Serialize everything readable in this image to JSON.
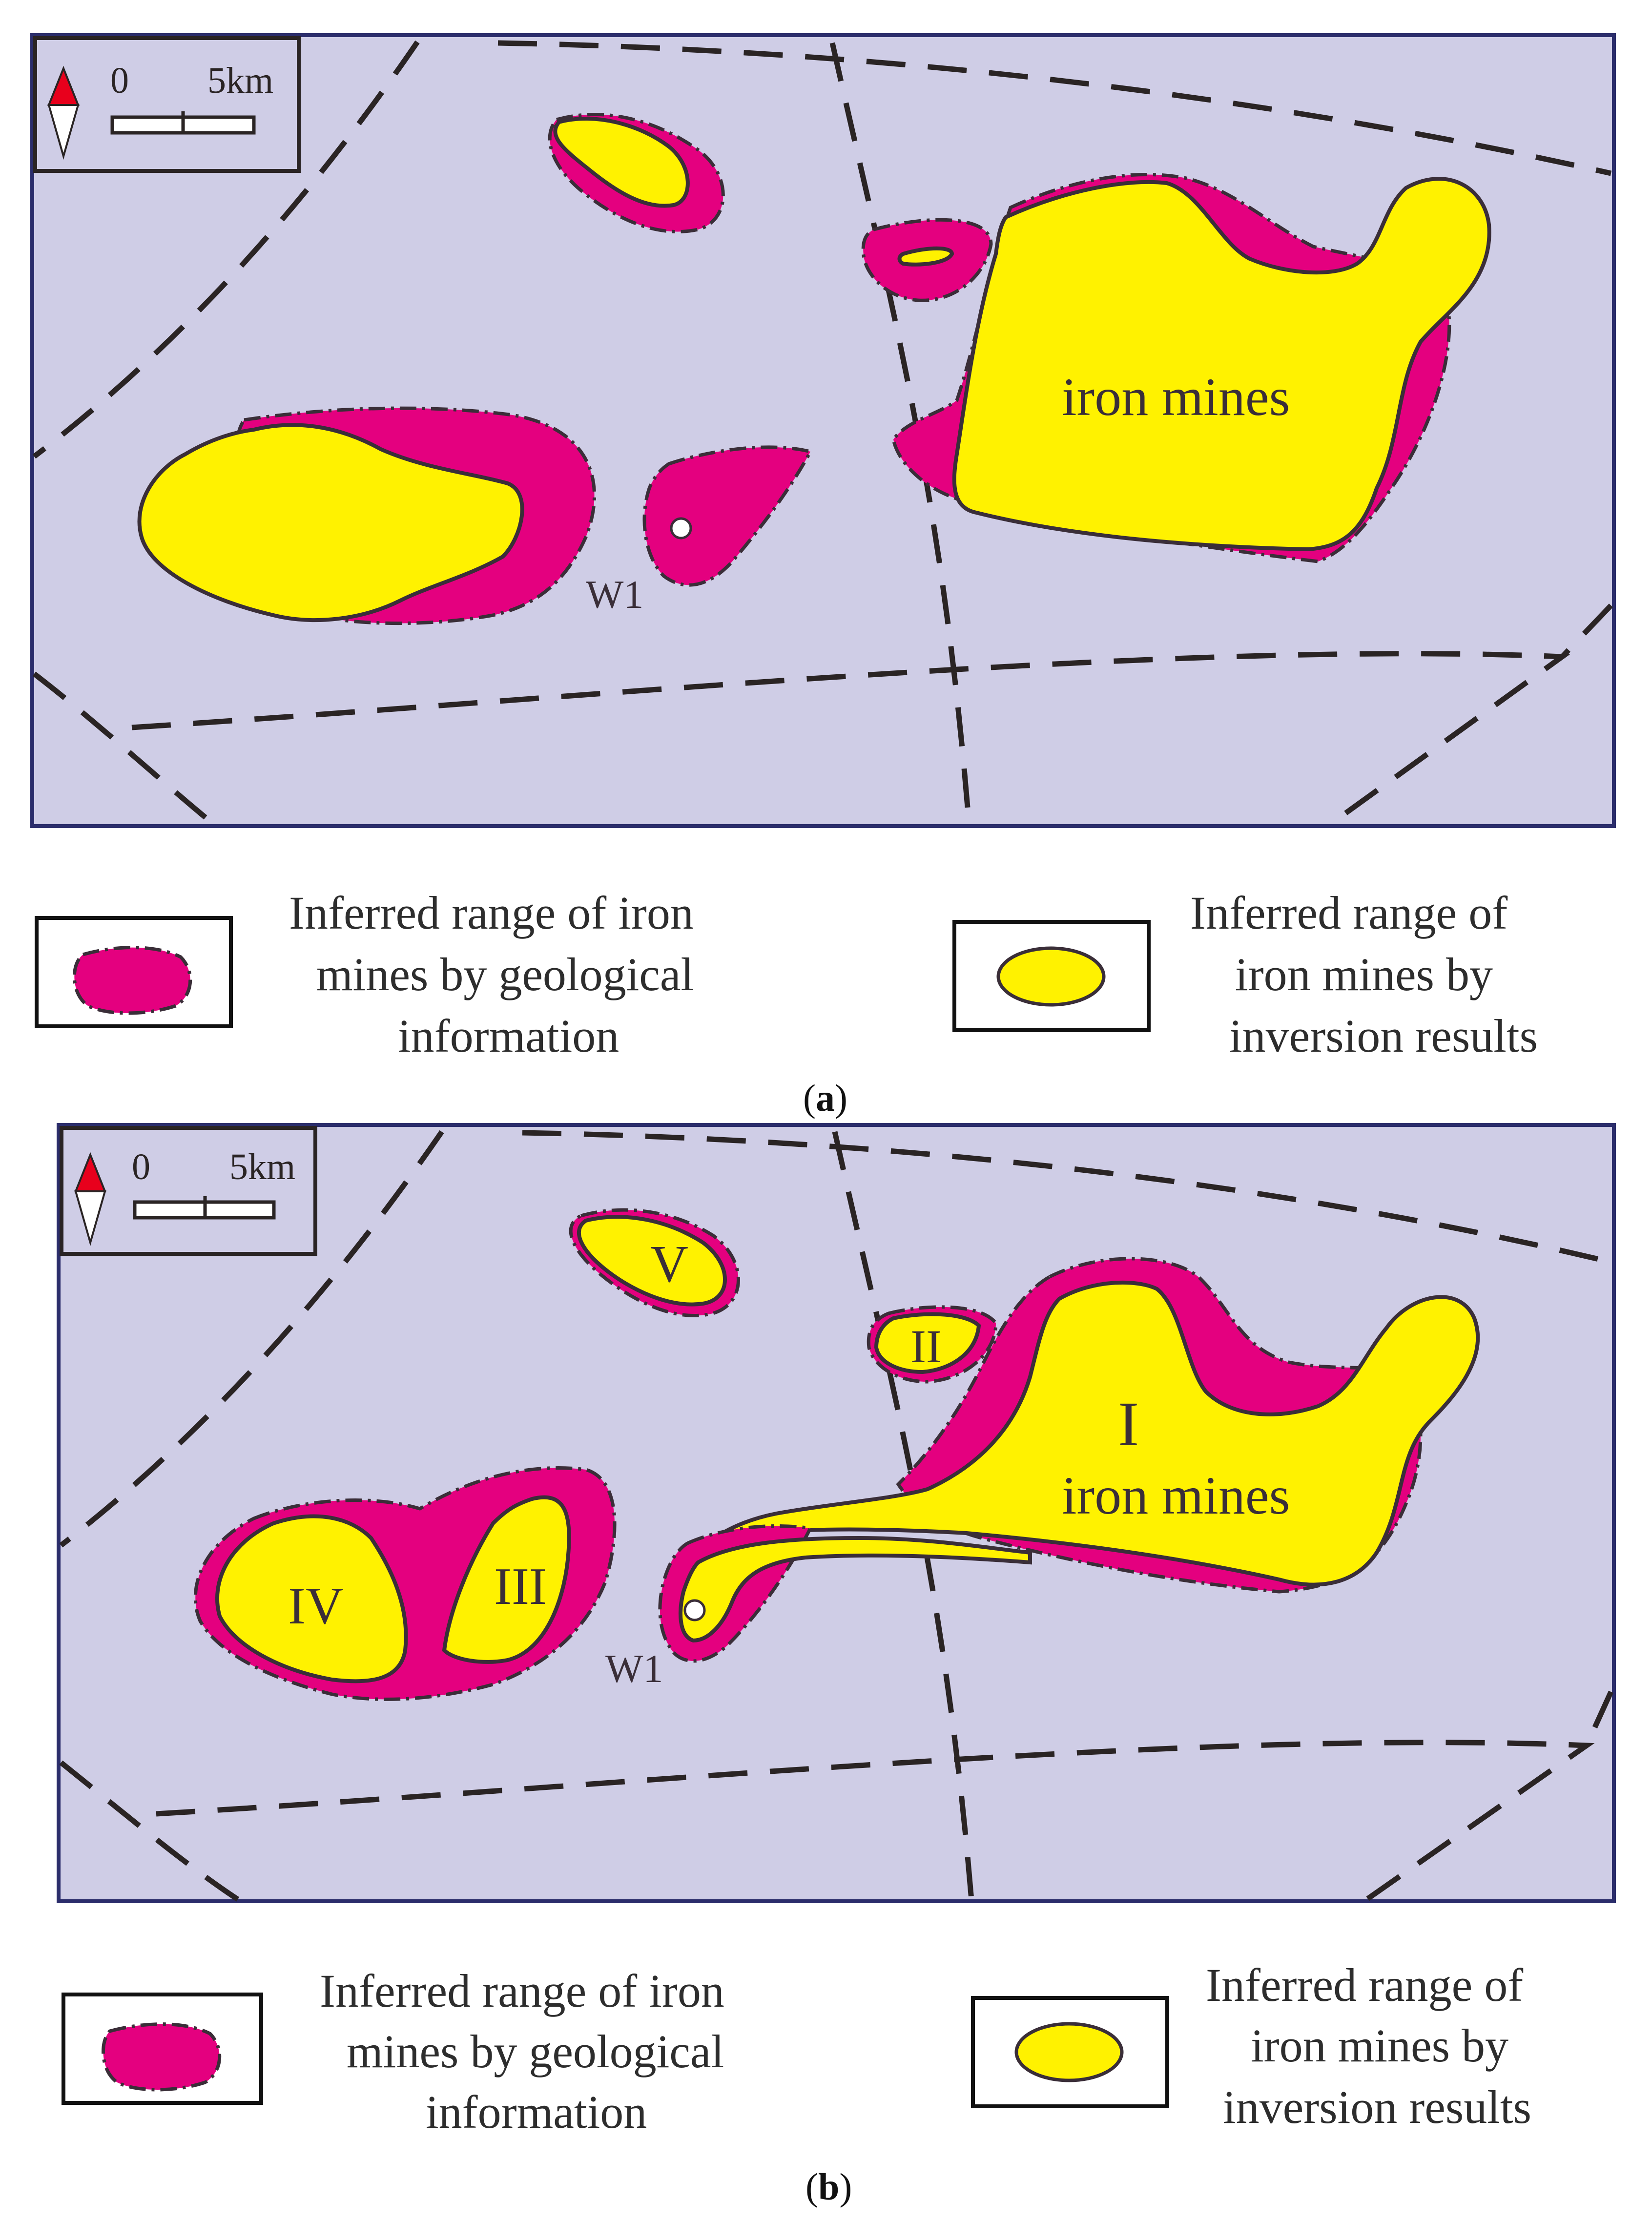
{
  "figure": {
    "panels": [
      {
        "id": "a",
        "label_open": "(",
        "label_letter": "a",
        "label_close": ")",
        "scale_bar": {
          "start": "0",
          "end": "5km"
        },
        "well": "W1",
        "text_labels": [
          "iron mines"
        ]
      },
      {
        "id": "b",
        "label_open": "(",
        "label_letter": "b",
        "label_close": ")",
        "scale_bar": {
          "start": "0",
          "end": "5km"
        },
        "well": "W1",
        "ore_labels": [
          "I",
          "II",
          "III",
          "IV",
          "V"
        ],
        "text_labels": [
          "iron mines"
        ]
      }
    ],
    "legend": {
      "geological": [
        "Inferred range of iron",
        "mines by geological",
        "information"
      ],
      "inversion": [
        "Inferred range of",
        "iron mines by",
        "inversion results"
      ]
    },
    "colors": {
      "map_background": "#cfcde6",
      "geological_range": "#e4007f",
      "inversion_range": "#fff200",
      "fault_line": "#2a2424",
      "north_arrow": "#e8001c"
    }
  }
}
